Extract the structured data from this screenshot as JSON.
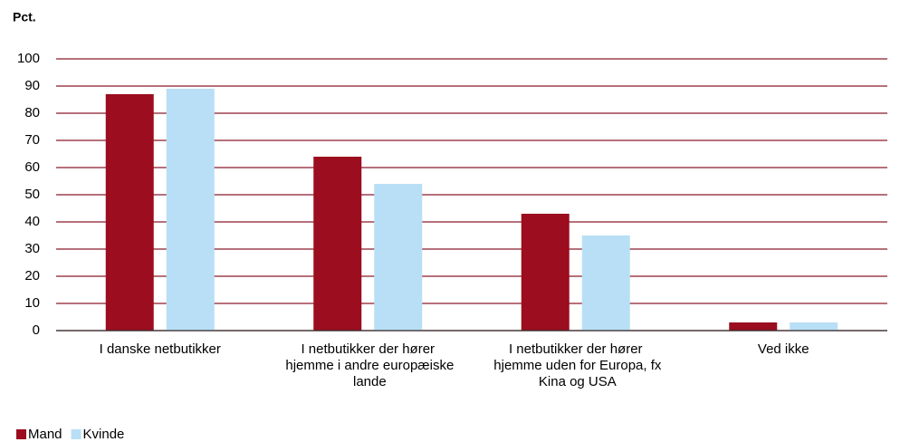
{
  "chart_data": {
    "type": "bar",
    "y_axis_label": "Pct.",
    "categories": [
      "I danske netbutikker",
      "I netbutikker der hører hjemme i andre europæiske lande",
      "I netbutikker der hører hjemme uden for Europa, fx Kina og USA",
      "Ved ikke"
    ],
    "series": [
      {
        "name": "Mand",
        "color": "#9b0d1f",
        "values": [
          87,
          64,
          43,
          3
        ]
      },
      {
        "name": "Kvinde",
        "color": "#b8dff5",
        "values": [
          89,
          54,
          35,
          3
        ]
      }
    ],
    "ylim": [
      0,
      100
    ],
    "yticks": [
      0,
      10,
      20,
      30,
      40,
      50,
      60,
      70,
      80,
      90,
      100
    ],
    "grid": true,
    "legend": "bottom-left"
  }
}
